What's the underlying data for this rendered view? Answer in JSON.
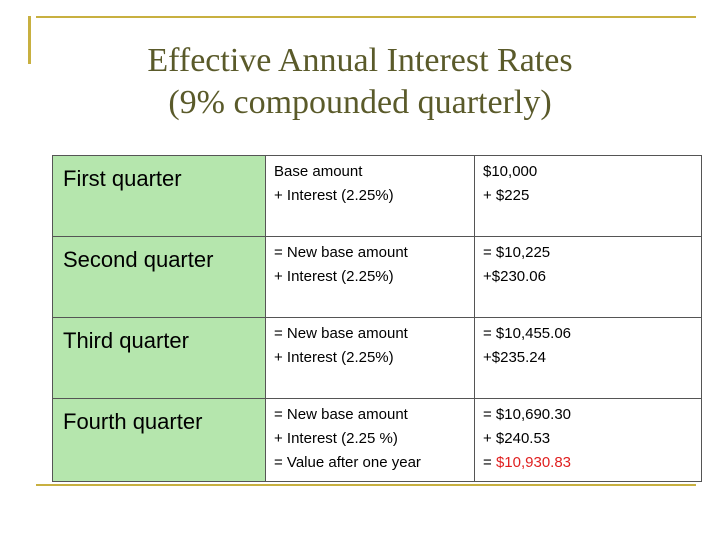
{
  "title_line1": "Effective Annual Interest Rates",
  "title_line2": "(9% compounded quarterly)",
  "rows": [
    {
      "quarter": "First quarter",
      "desc": [
        "Base amount",
        "+ Interest (2.25%)"
      ],
      "values": [
        "$10,000",
        "+ $225"
      ]
    },
    {
      "quarter": "Second quarter",
      "desc": [
        "= New base amount",
        "+ Interest (2.25%)"
      ],
      "values": [
        "= $10,225",
        "+$230.06"
      ]
    },
    {
      "quarter": "Third quarter",
      "desc": [
        "= New base amount",
        "+ Interest (2.25%)"
      ],
      "values": [
        "= $10,455.06",
        "+$235.24"
      ]
    },
    {
      "quarter": "Fourth quarter",
      "desc": [
        "= New base amount",
        "+ Interest (2.25 %)",
        "= Value after one year"
      ],
      "values": [
        "= $10,690.30",
        "+ $240.53"
      ],
      "final_prefix": "= ",
      "final_value": "$10,930.83"
    }
  ],
  "colors": {
    "quarter_cell_bg": "#b5e6ad",
    "highlight": "#e02020",
    "title": "#5a5a2a",
    "accent_lines": "#c8b040"
  }
}
